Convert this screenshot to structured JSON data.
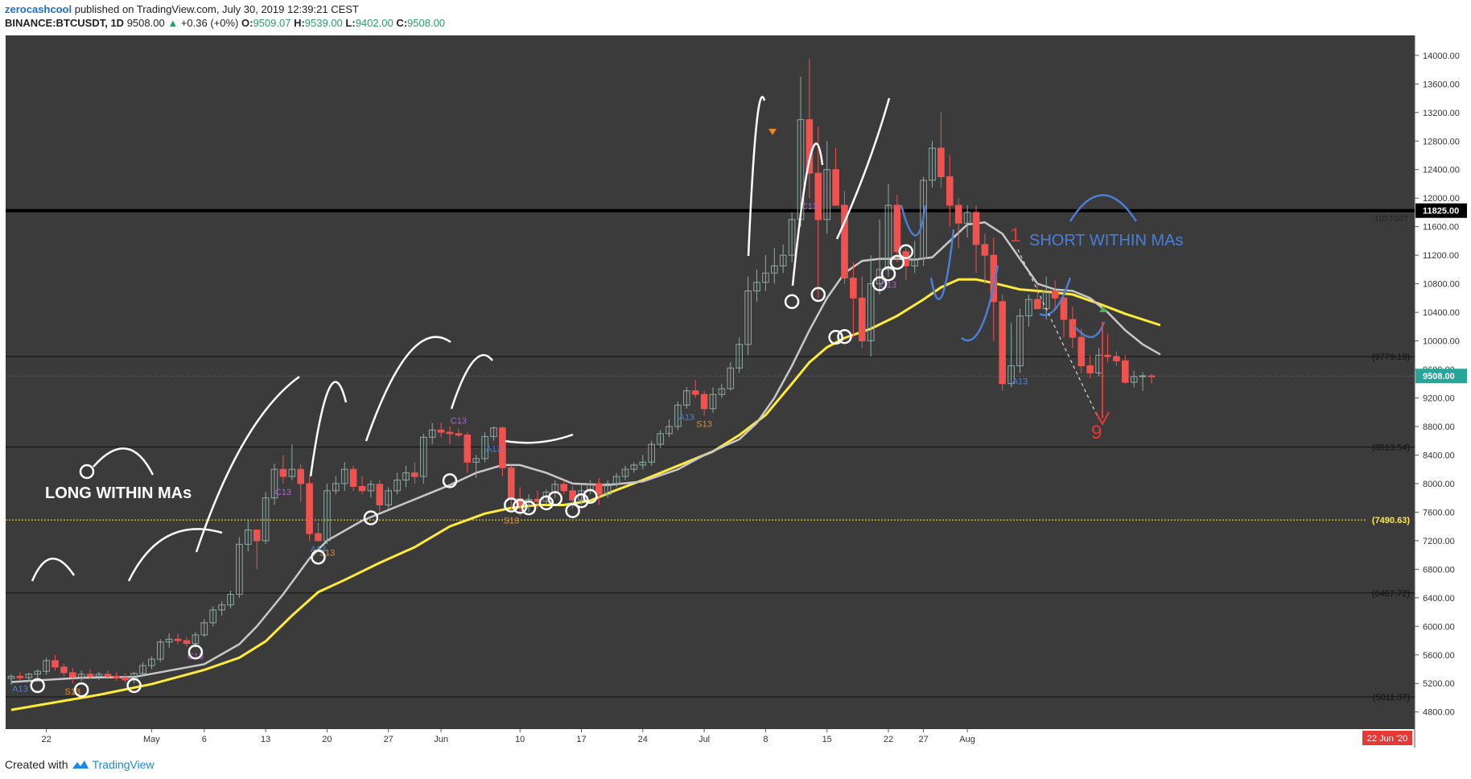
{
  "header": {
    "author": "zerocashcool",
    "published": "published on TradingView.com, July 30, 2019 12:39:21 CEST",
    "symbol": "BINANCE:BTCUSDT, 1D",
    "last_price": "9508.00",
    "change": "+0.36 (+0%)",
    "o_label": "O:",
    "o_value": "9509.07",
    "h_label": "H:",
    "h_value": "9539.00",
    "l_label": "L:",
    "l_value": "9402.00",
    "c_label": "C:",
    "c_value": "9508.00"
  },
  "footer": {
    "created_with": "Created with",
    "brand": "TradingView"
  },
  "colors": {
    "background": "#3b3b3b",
    "up": "#8fa9a3",
    "down": "#ef5350",
    "ma_fast": "#c8c8c8",
    "ma_slow": "#ffeb3b",
    "annotation_white": "#ffffff",
    "annotation_blue": "#4a7fd4",
    "target_red": "#e53935",
    "price_badge": "#26a69a"
  },
  "chart_data": {
    "type": "candlestick",
    "x_ticks": [
      "22",
      "May",
      "6",
      "13",
      "20",
      "27",
      "Jun",
      "10",
      "17",
      "24",
      "Jul",
      "8",
      "15",
      "22",
      "27",
      "Aug"
    ],
    "y_ticks": [
      "14000.00",
      "13600.00",
      "13200.00",
      "12800.00",
      "12400.00",
      "12000.00",
      "11600.00",
      "11200.00",
      "10800.00",
      "10400.00",
      "10000.00",
      "9600.00",
      "9200.00",
      "8800.00",
      "8400.00",
      "8000.00",
      "7600.00",
      "7200.00",
      "6800.00",
      "6400.00",
      "6000.00",
      "5600.00",
      "5200.00",
      "4800.00"
    ],
    "ylim": [
      4560,
      14280
    ],
    "date_badge": "22 Jun '20",
    "current_price": {
      "value": 9508,
      "label": "9508.00"
    },
    "horizontal_levels": [
      {
        "value": 11825,
        "label": "11825.00",
        "note": "31D TDST",
        "style": "thick-black"
      },
      {
        "value": 9779.18,
        "label": "(9779.18)",
        "style": "black"
      },
      {
        "value": 8513.54,
        "label": "(8513.54)",
        "style": "black"
      },
      {
        "value": 7490.63,
        "label": "(7490.63)",
        "style": "yellow-dotted"
      },
      {
        "value": 6467.72,
        "label": "(6467.72)",
        "style": "black"
      },
      {
        "value": 5011.37,
        "label": "(5011.37)",
        "style": "black"
      }
    ],
    "candles": [
      [
        5270,
        5330,
        5180,
        5300
      ],
      [
        5300,
        5360,
        5240,
        5280
      ],
      [
        5280,
        5350,
        5230,
        5330
      ],
      [
        5330,
        5400,
        5280,
        5370
      ],
      [
        5370,
        5560,
        5320,
        5520
      ],
      [
        5520,
        5600,
        5380,
        5430
      ],
      [
        5430,
        5480,
        5300,
        5350
      ],
      [
        5350,
        5420,
        5200,
        5290
      ],
      [
        5290,
        5380,
        5230,
        5330
      ],
      [
        5330,
        5400,
        5270,
        5300
      ],
      [
        5300,
        5360,
        5250,
        5330
      ],
      [
        5330,
        5380,
        5260,
        5300
      ],
      [
        5300,
        5360,
        5230,
        5280
      ],
      [
        5280,
        5340,
        5210,
        5250
      ],
      [
        5250,
        5360,
        5200,
        5340
      ],
      [
        5340,
        5500,
        5300,
        5450
      ],
      [
        5450,
        5580,
        5400,
        5540
      ],
      [
        5540,
        5820,
        5500,
        5780
      ],
      [
        5780,
        5900,
        5700,
        5820
      ],
      [
        5820,
        5900,
        5750,
        5800
      ],
      [
        5800,
        5850,
        5720,
        5760
      ],
      [
        5760,
        5920,
        5700,
        5880
      ],
      [
        5880,
        6100,
        5850,
        6050
      ],
      [
        6050,
        6280,
        6000,
        6230
      ],
      [
        6230,
        6350,
        6150,
        6300
      ],
      [
        6300,
        6500,
        6250,
        6450
      ],
      [
        6450,
        7250,
        6400,
        7150
      ],
      [
        7150,
        7500,
        7050,
        7350
      ],
      [
        7350,
        7300,
        6800,
        7200
      ],
      [
        7200,
        7880,
        7150,
        7800
      ],
      [
        7800,
        8280,
        7700,
        8200
      ],
      [
        8200,
        8400,
        8000,
        8100
      ],
      [
        8100,
        8550,
        8050,
        8200
      ],
      [
        8200,
        8280,
        7750,
        8000
      ],
      [
        8000,
        8100,
        7200,
        7300
      ],
      [
        7300,
        7450,
        7200,
        7200
      ],
      [
        7200,
        8000,
        7150,
        7900
      ],
      [
        7900,
        8100,
        7850,
        8000
      ],
      [
        8000,
        8300,
        7900,
        8200
      ],
      [
        8200,
        8250,
        7900,
        7960
      ],
      [
        7960,
        8100,
        7850,
        7900
      ],
      [
        7900,
        8050,
        7800,
        7990
      ],
      [
        7990,
        8050,
        7600,
        7700
      ],
      [
        7700,
        7950,
        7650,
        7900
      ],
      [
        7900,
        8150,
        7850,
        8050
      ],
      [
        8050,
        8250,
        7950,
        8150
      ],
      [
        8150,
        8300,
        8000,
        8100
      ],
      [
        8100,
        8700,
        8000,
        8650
      ],
      [
        8650,
        8850,
        8550,
        8750
      ],
      [
        8750,
        8850,
        8650,
        8720
      ],
      [
        8720,
        8800,
        8550,
        8700
      ],
      [
        8700,
        8770,
        8650,
        8680
      ],
      [
        8680,
        8720,
        8150,
        8300
      ],
      [
        8300,
        8400,
        8080,
        8350
      ],
      [
        8350,
        8720,
        8300,
        8660
      ],
      [
        8660,
        8800,
        8600,
        8780
      ],
      [
        8780,
        8800,
        8100,
        8220
      ],
      [
        8220,
        8250,
        7600,
        7790
      ],
      [
        7790,
        7950,
        7550,
        7700
      ],
      [
        7700,
        7850,
        7600,
        7780
      ],
      [
        7780,
        7900,
        7650,
        7750
      ],
      [
        7750,
        7920,
        7700,
        7880
      ],
      [
        7880,
        8050,
        7800,
        7990
      ],
      [
        7990,
        8050,
        7850,
        7900
      ],
      [
        7900,
        7970,
        7650,
        7770
      ],
      [
        7770,
        7990,
        7700,
        7900
      ],
      [
        7900,
        8050,
        7850,
        8000
      ],
      [
        8000,
        8080,
        7700,
        7850
      ],
      [
        7850,
        8050,
        7800,
        8000
      ],
      [
        8000,
        8150,
        7950,
        8100
      ],
      [
        8100,
        8250,
        8050,
        8200
      ],
      [
        8200,
        8300,
        8150,
        8260
      ],
      [
        8260,
        8400,
        8200,
        8300
      ],
      [
        8300,
        8600,
        8250,
        8550
      ],
      [
        8550,
        8750,
        8500,
        8700
      ],
      [
        8700,
        8900,
        8650,
        8800
      ],
      [
        8800,
        9150,
        8750,
        9100
      ],
      [
        9100,
        9350,
        9050,
        9300
      ],
      [
        9300,
        9450,
        9200,
        9250
      ],
      [
        9250,
        9300,
        8950,
        9050
      ],
      [
        9050,
        9350,
        8990,
        9250
      ],
      [
        9250,
        9400,
        9200,
        9330
      ],
      [
        9330,
        9700,
        9300,
        9620
      ],
      [
        9620,
        10050,
        9550,
        9950
      ],
      [
        9950,
        10900,
        9800,
        10700
      ],
      [
        10700,
        11000,
        10550,
        10820
      ],
      [
        10820,
        11200,
        10700,
        10950
      ],
      [
        10950,
        11300,
        10800,
        11050
      ],
      [
        11050,
        11350,
        10950,
        11200
      ],
      [
        11200,
        11800,
        11100,
        11700
      ],
      [
        11700,
        13700,
        11600,
        13100
      ],
      [
        13100,
        13950,
        12000,
        12350
      ],
      [
        12350,
        13000,
        10600,
        11700
      ],
      [
        11700,
        12800,
        11500,
        12400
      ],
      [
        12400,
        12700,
        11900,
        11900
      ],
      [
        11900,
        12100,
        10800,
        10880
      ],
      [
        10880,
        11100,
        10050,
        10600
      ],
      [
        10600,
        10900,
        9900,
        10000
      ],
      [
        10000,
        11200,
        9780,
        10800
      ],
      [
        10800,
        11700,
        10650,
        11000
      ],
      [
        11000,
        12200,
        10900,
        11900
      ],
      [
        11900,
        12050,
        11100,
        11250
      ],
      [
        11250,
        11300,
        10850,
        11050
      ],
      [
        11050,
        11400,
        10950,
        11150
      ],
      [
        11150,
        12300,
        11050,
        12250
      ],
      [
        12250,
        12800,
        12150,
        12700
      ],
      [
        12700,
        13200,
        12150,
        12300
      ],
      [
        12300,
        12600,
        11600,
        11900
      ],
      [
        11900,
        12000,
        11300,
        11650
      ],
      [
        11650,
        11900,
        11450,
        11800
      ],
      [
        11800,
        11900,
        10950,
        11350
      ],
      [
        11350,
        11500,
        10800,
        11200
      ],
      [
        11200,
        11450,
        10000,
        10550
      ],
      [
        10550,
        10650,
        9300,
        9400
      ],
      [
        9400,
        10250,
        9350,
        9650
      ],
      [
        9650,
        10450,
        9550,
        10350
      ],
      [
        10350,
        10650,
        10200,
        10580
      ],
      [
        10580,
        10800,
        10450,
        10450
      ],
      [
        10450,
        10900,
        10300,
        10700
      ],
      [
        10700,
        10850,
        10450,
        10600
      ],
      [
        10600,
        10650,
        10050,
        10300
      ],
      [
        10300,
        10480,
        9900,
        10050
      ],
      [
        10050,
        10170,
        9550,
        9650
      ],
      [
        9650,
        9800,
        9480,
        9550
      ],
      [
        9550,
        9900,
        9500,
        9800
      ],
      [
        9800,
        10100,
        9700,
        9780
      ],
      [
        9780,
        9850,
        9650,
        9720
      ],
      [
        9720,
        9800,
        9400,
        9420
      ],
      [
        9420,
        9580,
        9350,
        9500
      ],
      [
        9500,
        9560,
        9300,
        9510
      ],
      [
        9509.07,
        9539,
        9402,
        9508
      ]
    ],
    "ma_fast": [
      [
        0,
        5220
      ],
      [
        8,
        5280
      ],
      [
        14,
        5290
      ],
      [
        22,
        5470
      ],
      [
        26,
        5750
      ],
      [
        28,
        6000
      ],
      [
        31,
        6450
      ],
      [
        34,
        6950
      ],
      [
        36,
        7200
      ],
      [
        40,
        7480
      ],
      [
        45,
        7730
      ],
      [
        50,
        7980
      ],
      [
        53,
        8150
      ],
      [
        56,
        8260
      ],
      [
        58,
        8260
      ],
      [
        61,
        8150
      ],
      [
        64,
        8000
      ],
      [
        68,
        7980
      ],
      [
        72,
        8030
      ],
      [
        76,
        8200
      ],
      [
        79,
        8400
      ],
      [
        83,
        8620
      ],
      [
        85,
        8850
      ],
      [
        87,
        9200
      ],
      [
        89,
        9650
      ],
      [
        91,
        10150
      ],
      [
        93,
        10600
      ],
      [
        95,
        10950
      ],
      [
        97,
        11120
      ],
      [
        99,
        11150
      ],
      [
        101,
        11150
      ],
      [
        103,
        11140
      ],
      [
        105,
        11170
      ],
      [
        107,
        11400
      ],
      [
        109,
        11630
      ],
      [
        111,
        11660
      ],
      [
        113,
        11500
      ],
      [
        115,
        11150
      ],
      [
        117,
        10800
      ],
      [
        119,
        10720
      ],
      [
        121,
        10700
      ],
      [
        123,
        10600
      ],
      [
        125,
        10400
      ],
      [
        127,
        10150
      ],
      [
        129,
        9950
      ],
      [
        131,
        9810
      ]
    ],
    "ma_slow": [
      [
        0,
        4830
      ],
      [
        10,
        5040
      ],
      [
        16,
        5190
      ],
      [
        22,
        5390
      ],
      [
        26,
        5560
      ],
      [
        29,
        5790
      ],
      [
        32,
        6150
      ],
      [
        35,
        6480
      ],
      [
        38,
        6650
      ],
      [
        42,
        6890
      ],
      [
        46,
        7110
      ],
      [
        50,
        7400
      ],
      [
        54,
        7580
      ],
      [
        57,
        7660
      ],
      [
        60,
        7700
      ],
      [
        63,
        7700
      ],
      [
        66,
        7760
      ],
      [
        69,
        7910
      ],
      [
        72,
        8050
      ],
      [
        76,
        8250
      ],
      [
        80,
        8450
      ],
      [
        83,
        8680
      ],
      [
        86,
        8960
      ],
      [
        89,
        9400
      ],
      [
        91,
        9700
      ],
      [
        93,
        9910
      ],
      [
        95,
        10040
      ],
      [
        98,
        10170
      ],
      [
        101,
        10350
      ],
      [
        104,
        10580
      ],
      [
        106,
        10750
      ],
      [
        108,
        10860
      ],
      [
        110,
        10860
      ],
      [
        112,
        10810
      ],
      [
        115,
        10720
      ],
      [
        118,
        10690
      ],
      [
        121,
        10650
      ],
      [
        124,
        10520
      ],
      [
        127,
        10380
      ],
      [
        130,
        10260
      ],
      [
        131,
        10220
      ]
    ],
    "td_labels": [
      {
        "i": 1,
        "text": "A13",
        "kind": "below",
        "color": "#4a7fd4"
      },
      {
        "i": 7,
        "text": "S13",
        "kind": "below",
        "color": "#e6892e"
      },
      {
        "i": 21,
        "text": "C13",
        "kind": "below",
        "color": "#b05fcf"
      },
      {
        "i": 31,
        "text": "C13",
        "kind": "below",
        "color": "#b05fcf"
      },
      {
        "i": 35,
        "text": "A13",
        "kind": "below",
        "color": "#4a7fd4"
      },
      {
        "i": 36,
        "text": "S13",
        "kind": "below",
        "color": "#e6892e"
      },
      {
        "i": 51,
        "text": "C13",
        "kind": "above",
        "color": "#b05fcf"
      },
      {
        "i": 55,
        "text": "A13",
        "kind": "below",
        "color": "#4a7fd4"
      },
      {
        "i": 57,
        "text": "S13",
        "kind": "below",
        "color": "#e6892e"
      },
      {
        "i": 77,
        "text": "A13",
        "kind": "below",
        "color": "#4a7fd4"
      },
      {
        "i": 79,
        "text": "S13",
        "kind": "below",
        "color": "#e6892e"
      },
      {
        "i": 91,
        "text": "C13",
        "kind": "below",
        "color": "#b05fcf"
      },
      {
        "i": 100,
        "text": "C13",
        "kind": "below",
        "color": "#b05fcf"
      },
      {
        "i": 115,
        "text": "A13",
        "kind": "below",
        "color": "#4a7fd4"
      }
    ],
    "annotations": {
      "long_text": "LONG WITHIN MAs",
      "short_text": "SHORT WITHIN MAs",
      "count_1": "1",
      "count_9": "9"
    }
  }
}
